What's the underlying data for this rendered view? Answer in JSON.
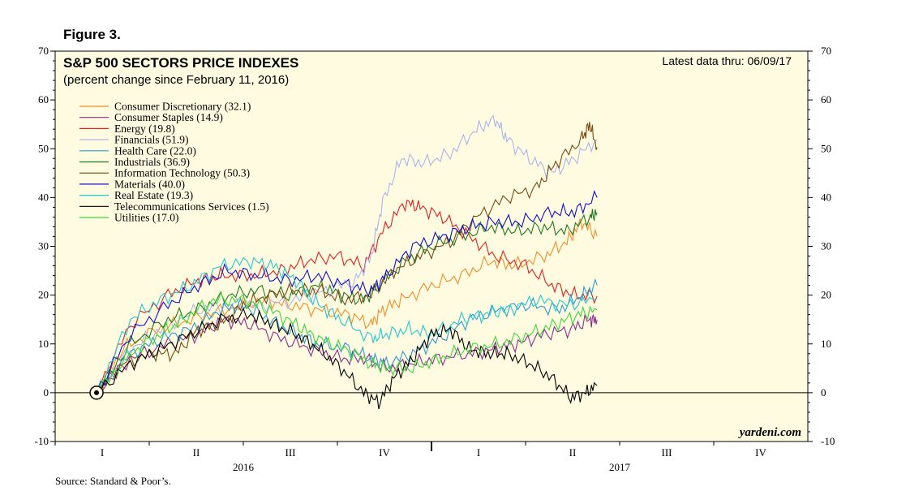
{
  "figure_label": "Figure 3.",
  "source": "Source: Standard & Poor’s.",
  "chart_data": {
    "type": "line",
    "title": "S&P 500 SECTORS PRICE INDEXES",
    "subtitle": "(percent change since February 11, 2016)",
    "latest_note": "Latest data thru: 06/09/17",
    "watermark": "yardeni.com",
    "ylim": [
      -10,
      70
    ],
    "yticks": [
      "-10",
      "0",
      "10",
      "20",
      "30",
      "40",
      "50",
      "60",
      "70"
    ],
    "xlim": [
      2016.0,
      2018.0
    ],
    "x_quarter_labels": [
      "I",
      "II",
      "III",
      "IV",
      "I",
      "II",
      "III",
      "IV"
    ],
    "year_labels": [
      "2016",
      "2017"
    ],
    "base_point": {
      "x": 2016.11,
      "y": 0
    },
    "legend_position": "top-left",
    "series": [
      {
        "name": "Consumer Discretionary (32.1)",
        "color": "#f28c28",
        "points": [
          [
            2016.11,
            0
          ],
          [
            2016.18,
            9
          ],
          [
            2016.27,
            13
          ],
          [
            2016.36,
            15
          ],
          [
            2016.45,
            17
          ],
          [
            2016.55,
            19
          ],
          [
            2016.62,
            18
          ],
          [
            2016.7,
            17
          ],
          [
            2016.78,
            16
          ],
          [
            2016.84,
            14
          ],
          [
            2016.87,
            17
          ],
          [
            2016.92,
            19
          ],
          [
            2017.0,
            22
          ],
          [
            2017.08,
            24
          ],
          [
            2017.16,
            27
          ],
          [
            2017.22,
            26
          ],
          [
            2017.3,
            28
          ],
          [
            2017.36,
            31
          ],
          [
            2017.4,
            35
          ],
          [
            2017.44,
            32.1
          ]
        ]
      },
      {
        "name": "Consumer Staples (14.9)",
        "color": "#8b2c8b",
        "points": [
          [
            2016.11,
            0
          ],
          [
            2016.2,
            7
          ],
          [
            2016.3,
            10
          ],
          [
            2016.38,
            12
          ],
          [
            2016.45,
            15
          ],
          [
            2016.52,
            14
          ],
          [
            2016.6,
            11
          ],
          [
            2016.68,
            9
          ],
          [
            2016.76,
            7
          ],
          [
            2016.82,
            7
          ],
          [
            2016.88,
            5
          ],
          [
            2016.95,
            6
          ],
          [
            2017.02,
            7
          ],
          [
            2017.1,
            8
          ],
          [
            2017.17,
            9
          ],
          [
            2017.23,
            10
          ],
          [
            2017.3,
            12
          ],
          [
            2017.37,
            13
          ],
          [
            2017.42,
            15
          ],
          [
            2017.44,
            14.9
          ]
        ]
      },
      {
        "name": "Energy (19.8)",
        "color": "#e02020",
        "points": [
          [
            2016.11,
            0
          ],
          [
            2016.2,
            14
          ],
          [
            2016.3,
            20
          ],
          [
            2016.38,
            23
          ],
          [
            2016.44,
            24
          ],
          [
            2016.52,
            24
          ],
          [
            2016.6,
            25
          ],
          [
            2016.67,
            27
          ],
          [
            2016.75,
            28
          ],
          [
            2016.82,
            26
          ],
          [
            2016.87,
            33
          ],
          [
            2016.93,
            39
          ],
          [
            2016.97,
            38
          ],
          [
            2017.03,
            36
          ],
          [
            2017.1,
            32
          ],
          [
            2017.17,
            28
          ],
          [
            2017.25,
            26
          ],
          [
            2017.32,
            22
          ],
          [
            2017.38,
            20
          ],
          [
            2017.44,
            19.8
          ]
        ]
      },
      {
        "name": "Financials (51.9)",
        "color": "#aab4ee",
        "points": [
          [
            2016.11,
            0
          ],
          [
            2016.2,
            9
          ],
          [
            2016.28,
            13
          ],
          [
            2016.38,
            17
          ],
          [
            2016.46,
            18
          ],
          [
            2016.55,
            18
          ],
          [
            2016.64,
            19
          ],
          [
            2016.72,
            21
          ],
          [
            2016.8,
            23
          ],
          [
            2016.84,
            28
          ],
          [
            2016.87,
            39
          ],
          [
            2016.92,
            48
          ],
          [
            2016.98,
            47
          ],
          [
            2017.05,
            49
          ],
          [
            2017.12,
            54
          ],
          [
            2017.17,
            56
          ],
          [
            2017.2,
            52
          ],
          [
            2017.26,
            48
          ],
          [
            2017.32,
            45
          ],
          [
            2017.38,
            48
          ],
          [
            2017.44,
            51.9
          ]
        ]
      },
      {
        "name": "Health Care (22.0)",
        "color": "#2e9ad0",
        "points": [
          [
            2016.11,
            0
          ],
          [
            2016.2,
            8
          ],
          [
            2016.28,
            11
          ],
          [
            2016.36,
            13
          ],
          [
            2016.44,
            17
          ],
          [
            2016.5,
            18
          ],
          [
            2016.57,
            15
          ],
          [
            2016.64,
            12
          ],
          [
            2016.7,
            10
          ],
          [
            2016.78,
            9
          ],
          [
            2016.84,
            7
          ],
          [
            2016.88,
            6
          ],
          [
            2016.95,
            8
          ],
          [
            2017.02,
            11
          ],
          [
            2017.1,
            15
          ],
          [
            2017.18,
            17
          ],
          [
            2017.26,
            18
          ],
          [
            2017.34,
            17
          ],
          [
            2017.4,
            20
          ],
          [
            2017.44,
            22
          ]
        ]
      },
      {
        "name": "Industrials (36.9)",
        "color": "#1f7a1f",
        "points": [
          [
            2016.11,
            0
          ],
          [
            2016.2,
            10
          ],
          [
            2016.3,
            15
          ],
          [
            2016.38,
            17
          ],
          [
            2016.46,
            20
          ],
          [
            2016.54,
            21
          ],
          [
            2016.62,
            20
          ],
          [
            2016.7,
            22
          ],
          [
            2016.76,
            20
          ],
          [
            2016.82,
            19
          ],
          [
            2016.86,
            22
          ],
          [
            2016.93,
            27
          ],
          [
            2017.0,
            30
          ],
          [
            2017.08,
            32
          ],
          [
            2017.16,
            34
          ],
          [
            2017.23,
            33
          ],
          [
            2017.3,
            34
          ],
          [
            2017.36,
            33
          ],
          [
            2017.42,
            36
          ],
          [
            2017.44,
            36.9
          ]
        ]
      },
      {
        "name": "Information Technology (50.3)",
        "color": "#7a4a12",
        "points": [
          [
            2016.11,
            0
          ],
          [
            2016.18,
            6
          ],
          [
            2016.26,
            8
          ],
          [
            2016.32,
            8
          ],
          [
            2016.38,
            13
          ],
          [
            2016.44,
            14
          ],
          [
            2016.5,
            18
          ],
          [
            2016.57,
            20
          ],
          [
            2016.64,
            21
          ],
          [
            2016.7,
            21
          ],
          [
            2016.77,
            19
          ],
          [
            2016.84,
            20
          ],
          [
            2016.9,
            25
          ],
          [
            2016.97,
            28
          ],
          [
            2017.05,
            31
          ],
          [
            2017.12,
            36
          ],
          [
            2017.2,
            40
          ],
          [
            2017.28,
            42
          ],
          [
            2017.33,
            47
          ],
          [
            2017.4,
            52
          ],
          [
            2017.42,
            55
          ],
          [
            2017.44,
            50.3
          ]
        ]
      },
      {
        "name": "Materials (40.0)",
        "color": "#1010cc",
        "points": [
          [
            2016.11,
            0
          ],
          [
            2016.2,
            12
          ],
          [
            2016.3,
            18
          ],
          [
            2016.38,
            22
          ],
          [
            2016.46,
            25
          ],
          [
            2016.54,
            24
          ],
          [
            2016.62,
            23
          ],
          [
            2016.7,
            24
          ],
          [
            2016.78,
            22
          ],
          [
            2016.84,
            21
          ],
          [
            2016.88,
            24
          ],
          [
            2016.95,
            30
          ],
          [
            2017.03,
            32
          ],
          [
            2017.1,
            34
          ],
          [
            2017.17,
            35
          ],
          [
            2017.24,
            35
          ],
          [
            2017.32,
            37
          ],
          [
            2017.38,
            37
          ],
          [
            2017.44,
            40
          ]
        ]
      },
      {
        "name": "Real Estate (19.3)",
        "color": "#20c8d0",
        "points": [
          [
            2016.11,
            0
          ],
          [
            2016.2,
            15
          ],
          [
            2016.28,
            19
          ],
          [
            2016.36,
            22
          ],
          [
            2016.44,
            26
          ],
          [
            2016.52,
            27
          ],
          [
            2016.58,
            26
          ],
          [
            2016.64,
            23
          ],
          [
            2016.7,
            18
          ],
          [
            2016.76,
            15
          ],
          [
            2016.84,
            11
          ],
          [
            2016.88,
            12
          ],
          [
            2016.94,
            13
          ],
          [
            2017.0,
            12
          ],
          [
            2017.08,
            15
          ],
          [
            2017.14,
            16
          ],
          [
            2017.2,
            17
          ],
          [
            2017.28,
            19
          ],
          [
            2017.36,
            18
          ],
          [
            2017.44,
            19.3
          ]
        ]
      },
      {
        "name": "Telecommunications Services (1.5)",
        "color": "#000000",
        "points": [
          [
            2016.11,
            0
          ],
          [
            2016.2,
            6
          ],
          [
            2016.28,
            9
          ],
          [
            2016.36,
            12
          ],
          [
            2016.44,
            15
          ],
          [
            2016.52,
            16
          ],
          [
            2016.58,
            14
          ],
          [
            2016.64,
            12
          ],
          [
            2016.7,
            9
          ],
          [
            2016.76,
            5
          ],
          [
            2016.82,
            0
          ],
          [
            2016.86,
            -2
          ],
          [
            2016.9,
            3
          ],
          [
            2016.95,
            7
          ],
          [
            2017.0,
            12
          ],
          [
            2017.05,
            13
          ],
          [
            2017.1,
            9
          ],
          [
            2017.15,
            8
          ],
          [
            2017.2,
            8
          ],
          [
            2017.26,
            6
          ],
          [
            2017.32,
            3
          ],
          [
            2017.37,
            -1
          ],
          [
            2017.41,
            0
          ],
          [
            2017.44,
            1.5
          ]
        ]
      },
      {
        "name": "Utilities (17.0)",
        "color": "#3ad83a",
        "points": [
          [
            2016.11,
            0
          ],
          [
            2016.2,
            8
          ],
          [
            2016.28,
            12
          ],
          [
            2016.34,
            15
          ],
          [
            2016.42,
            19
          ],
          [
            2016.5,
            19
          ],
          [
            2016.57,
            17
          ],
          [
            2016.64,
            14
          ],
          [
            2016.7,
            11
          ],
          [
            2016.77,
            9
          ],
          [
            2016.84,
            6
          ],
          [
            2016.88,
            5
          ],
          [
            2016.95,
            5
          ],
          [
            2017.02,
            7
          ],
          [
            2017.1,
            9
          ],
          [
            2017.18,
            10
          ],
          [
            2017.26,
            12
          ],
          [
            2017.33,
            14
          ],
          [
            2017.39,
            16
          ],
          [
            2017.44,
            17
          ]
        ]
      }
    ]
  }
}
